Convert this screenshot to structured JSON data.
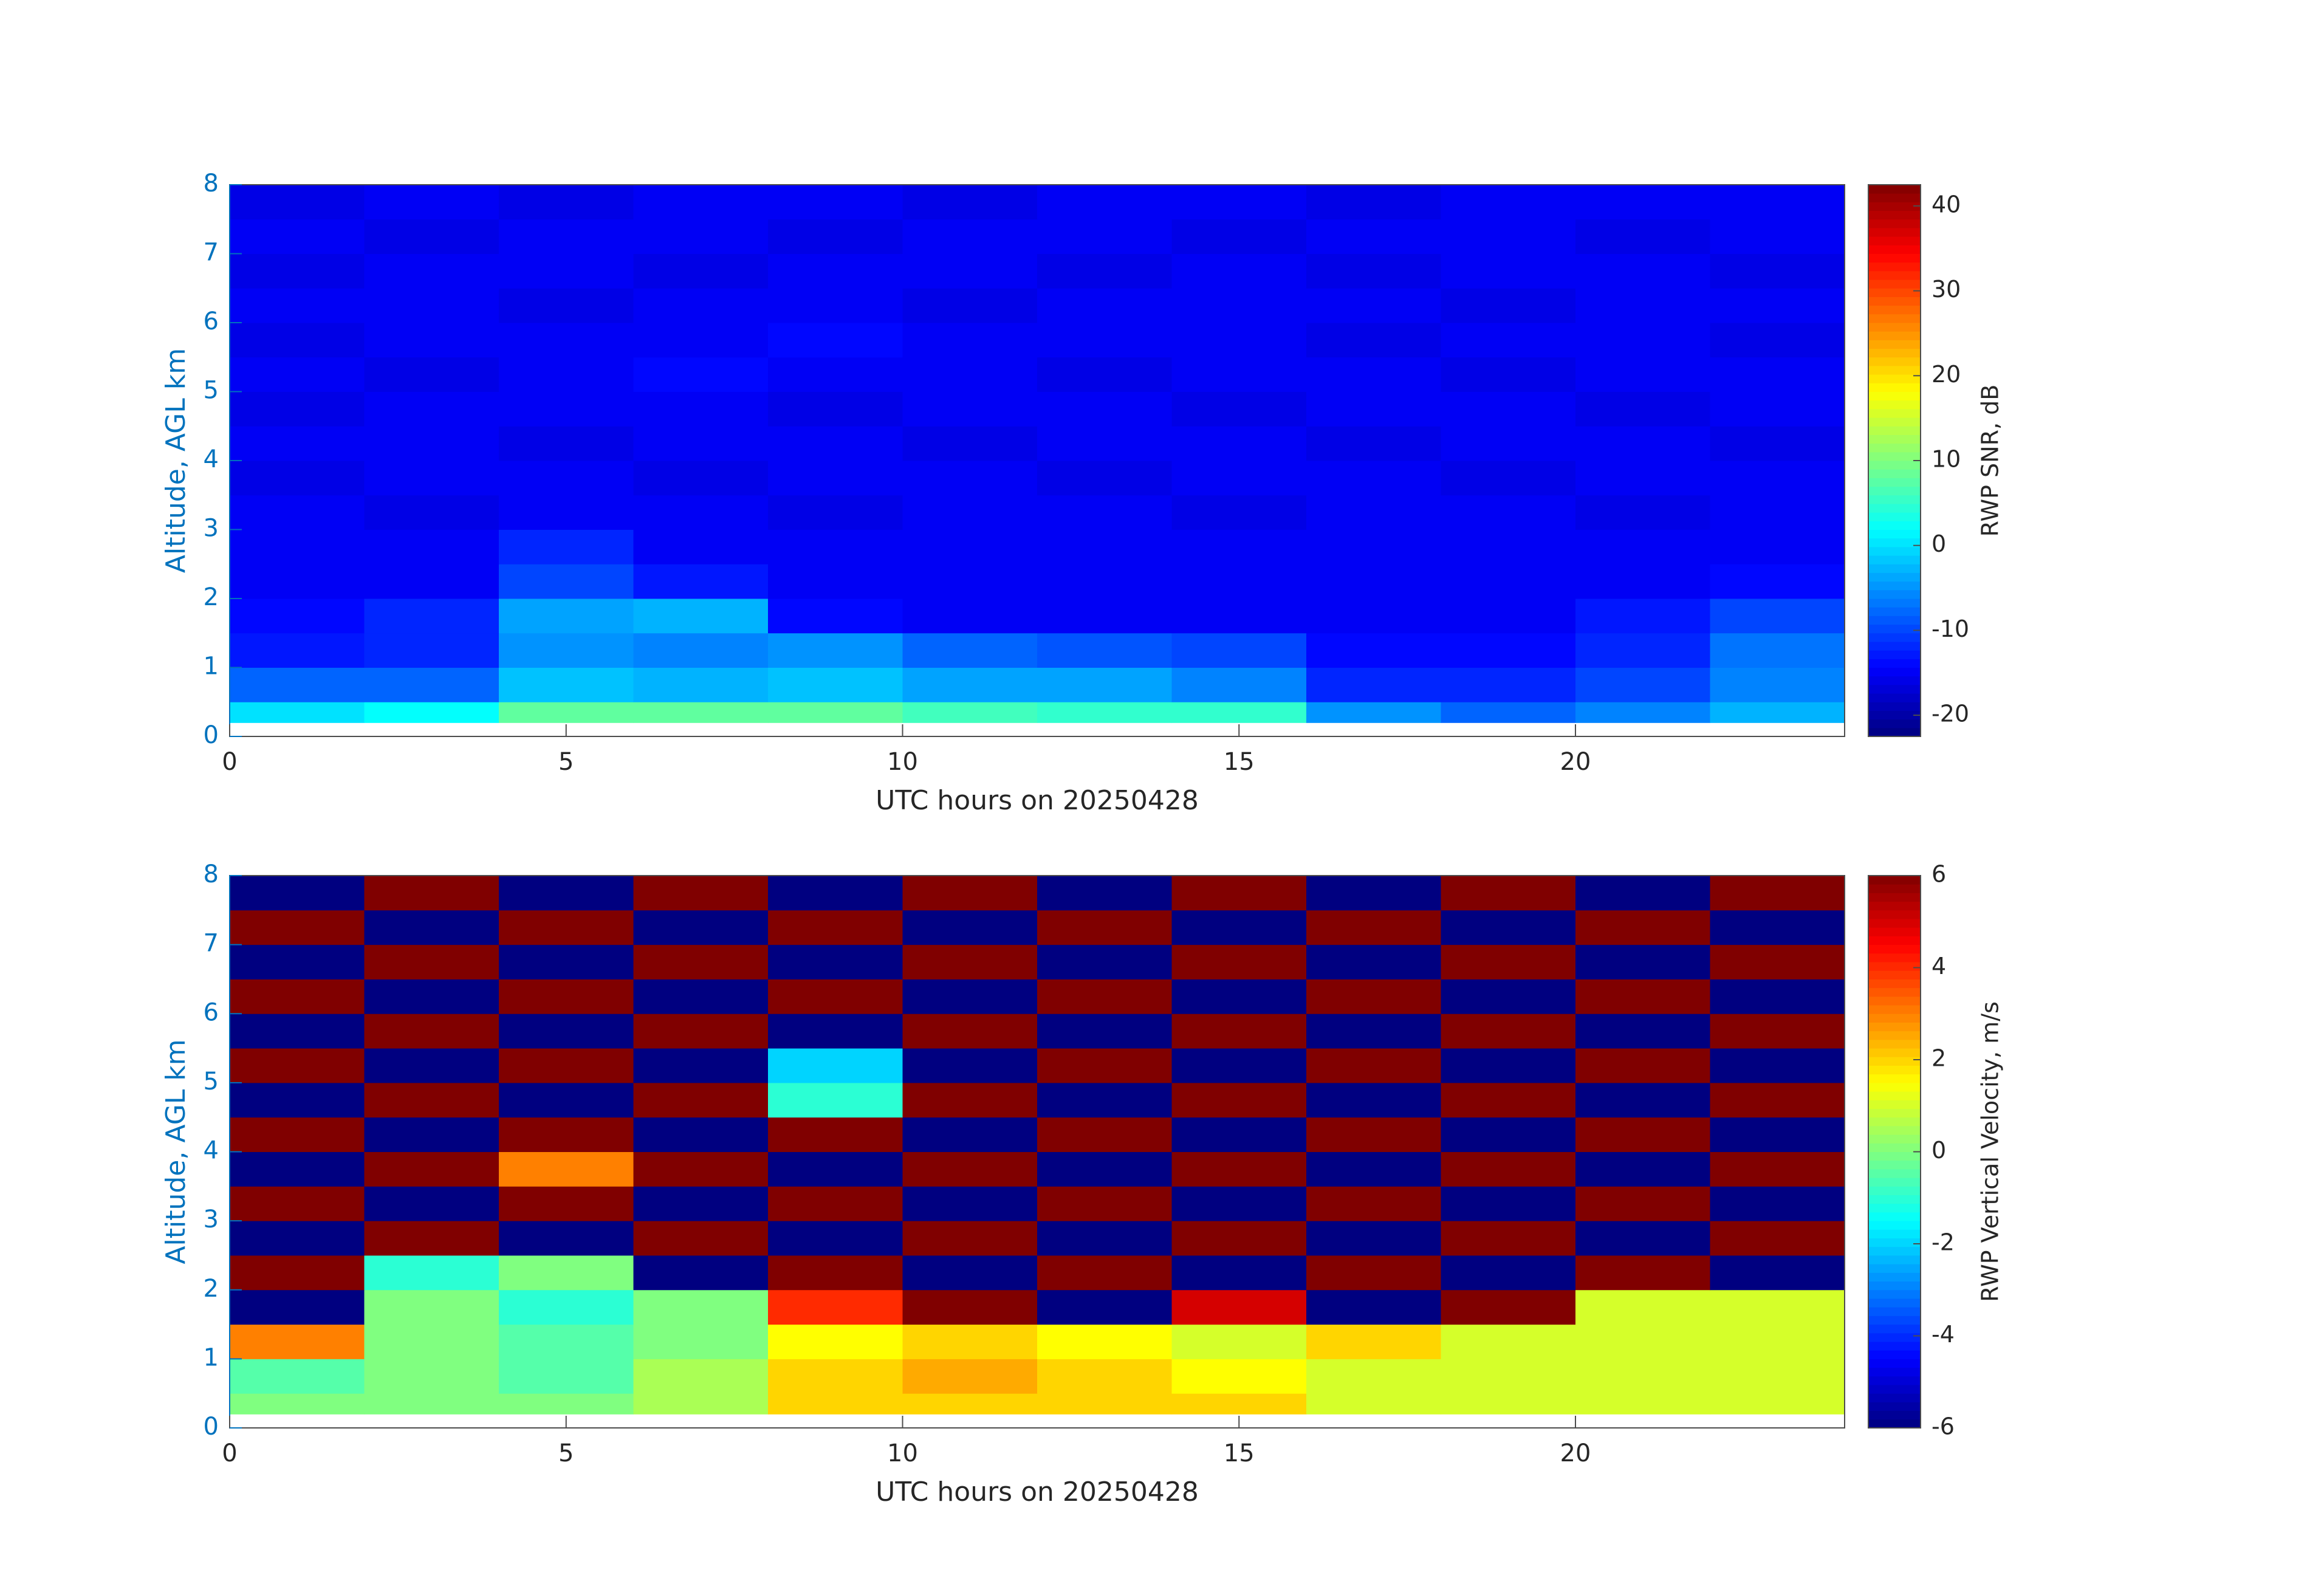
{
  "chart_data": [
    {
      "type": "heatmap",
      "colormap": "jet",
      "xlabel": "UTC hours on 20250428",
      "ylabel": "Altitude, AGL km",
      "colorbar_label": "RWP SNR, dB",
      "xlim": [
        0,
        24
      ],
      "ylim": [
        0,
        8
      ],
      "xticks": [
        0,
        5,
        10,
        15,
        20
      ],
      "yticks": [
        0,
        1,
        2,
        3,
        4,
        5,
        6,
        7,
        8
      ],
      "clim": [
        -22.5,
        42.5
      ],
      "cticks": [
        -20,
        -10,
        0,
        10,
        20,
        30,
        40
      ],
      "x_edges": [
        0,
        2,
        4,
        6,
        8,
        10,
        12,
        14,
        16,
        18,
        20,
        22,
        24
      ],
      "y_edges": [
        0.2,
        0.5,
        1,
        1.5,
        2,
        2.5,
        3,
        3.5,
        4,
        4.5,
        5,
        5.5,
        6,
        6.5,
        7,
        7.5,
        8
      ],
      "z": [
        [
          0,
          2,
          8,
          8,
          8,
          6,
          5,
          5,
          -5,
          -8,
          -6,
          -3
        ],
        [
          -8,
          -8,
          -2,
          -3,
          -2,
          -4,
          -4,
          -6,
          -12,
          -12,
          -10,
          -6
        ],
        [
          -13,
          -12,
          -5,
          -6,
          -5,
          -8,
          -9,
          -10,
          -14,
          -14,
          -12,
          -7
        ],
        [
          -14,
          -12,
          -4,
          -3,
          -14,
          -15,
          -15,
          -15,
          -15,
          -15,
          -13,
          -10
        ],
        [
          -15,
          -15,
          -10,
          -13,
          -15,
          -15,
          -15,
          -15,
          -15,
          -15,
          -15,
          -14
        ],
        [
          -15,
          -15,
          -12,
          -15,
          -15,
          -15,
          -15,
          -15,
          -15,
          -15,
          -15,
          -15
        ],
        [
          -15,
          -16,
          -15,
          -15,
          -16,
          -15,
          -15,
          -16,
          -15,
          -15,
          -16,
          -15
        ],
        [
          -16,
          -15,
          -15,
          -16,
          -15,
          -15,
          -16,
          -15,
          -15,
          -16,
          -15,
          -15
        ],
        [
          -15,
          -15,
          -16,
          -15,
          -15,
          -16,
          -15,
          -15,
          -16,
          -15,
          -15,
          -16
        ],
        [
          -16,
          -15,
          -15,
          -15,
          -16,
          -15,
          -15,
          -16,
          -15,
          -15,
          -16,
          -15
        ],
        [
          -15,
          -16,
          -15,
          -14,
          -15,
          -15,
          -16,
          -15,
          -15,
          -16,
          -15,
          -15
        ],
        [
          -16,
          -15,
          -15,
          -15,
          -14,
          -15,
          -15,
          -15,
          -16,
          -15,
          -15,
          -16
        ],
        [
          -15,
          -15,
          -16,
          -15,
          -15,
          -16,
          -15,
          -15,
          -15,
          -16,
          -15,
          -15
        ],
        [
          -16,
          -15,
          -15,
          -16,
          -15,
          -15,
          -16,
          -15,
          -16,
          -15,
          -15,
          -16
        ],
        [
          -15,
          -16,
          -15,
          -15,
          -16,
          -15,
          -15,
          -16,
          -15,
          -15,
          -16,
          -15
        ],
        [
          -16,
          -15,
          -16,
          -15,
          -15,
          -16,
          -15,
          -15,
          -16,
          -15,
          -15,
          -15
        ]
      ]
    },
    {
      "type": "heatmap",
      "colormap": "jet",
      "xlabel": "UTC hours on 20250428",
      "ylabel": "Altitude, AGL km",
      "colorbar_label": "RWP Vertical Velocity, m/s",
      "xlim": [
        0,
        24
      ],
      "ylim": [
        0,
        8
      ],
      "xticks": [
        0,
        5,
        10,
        15,
        20
      ],
      "yticks": [
        0,
        1,
        2,
        3,
        4,
        5,
        6,
        7,
        8
      ],
      "clim": [
        -6,
        6
      ],
      "cticks": [
        -6,
        -4,
        -2,
        0,
        2,
        4,
        6
      ],
      "x_edges": [
        0,
        2,
        4,
        6,
        8,
        10,
        12,
        14,
        16,
        18,
        20,
        22,
        24
      ],
      "y_edges": [
        0.2,
        0.5,
        1,
        1.5,
        2,
        2.5,
        3,
        3.5,
        4,
        4.5,
        5,
        5.5,
        6,
        6.5,
        7,
        7.5,
        8
      ],
      "z": [
        [
          0,
          0,
          0,
          0.5,
          2,
          2,
          2,
          2,
          1,
          1,
          1,
          1
        ],
        [
          -0.5,
          0,
          -0.5,
          0.5,
          2,
          2.5,
          2,
          1.5,
          1,
          1,
          1,
          1
        ],
        [
          3,
          0,
          -0.5,
          0,
          1.5,
          2,
          1.5,
          1,
          2,
          1,
          1,
          1
        ],
        [
          -6,
          0,
          -1,
          0,
          4,
          6,
          -6,
          5,
          -6,
          6,
          1,
          1
        ],
        [
          6,
          -1,
          0,
          -6,
          6,
          -6,
          6,
          -6,
          6,
          -6,
          6,
          -6
        ],
        [
          -6,
          6,
          -6,
          6,
          -6,
          6,
          -6,
          6,
          -6,
          6,
          -6,
          6
        ],
        [
          6,
          -6,
          6,
          -6,
          6,
          -6,
          6,
          -6,
          6,
          -6,
          6,
          -6
        ],
        [
          -6,
          6,
          3,
          6,
          -6,
          6,
          -6,
          6,
          -6,
          6,
          -6,
          6
        ],
        [
          6,
          -6,
          6,
          -6,
          6,
          -6,
          6,
          -6,
          6,
          -6,
          6,
          -6
        ],
        [
          -6,
          6,
          -6,
          6,
          -1,
          6,
          -6,
          6,
          -6,
          6,
          -6,
          6
        ],
        [
          6,
          -6,
          6,
          -6,
          -2,
          -6,
          6,
          -6,
          6,
          -6,
          6,
          -6
        ],
        [
          -6,
          6,
          -6,
          6,
          -6,
          6,
          -6,
          6,
          -6,
          6,
          -6,
          6
        ],
        [
          6,
          -6,
          6,
          -6,
          6,
          -6,
          6,
          -6,
          6,
          -6,
          6,
          -6
        ],
        [
          -6,
          6,
          -6,
          6,
          -6,
          6,
          -6,
          6,
          -6,
          6,
          -6,
          6
        ],
        [
          6,
          -6,
          6,
          -6,
          6,
          -6,
          6,
          -6,
          6,
          -6,
          6,
          -6
        ],
        [
          -6,
          6,
          -6,
          6,
          -6,
          6,
          -6,
          6,
          -6,
          6,
          -6,
          6
        ]
      ]
    }
  ]
}
